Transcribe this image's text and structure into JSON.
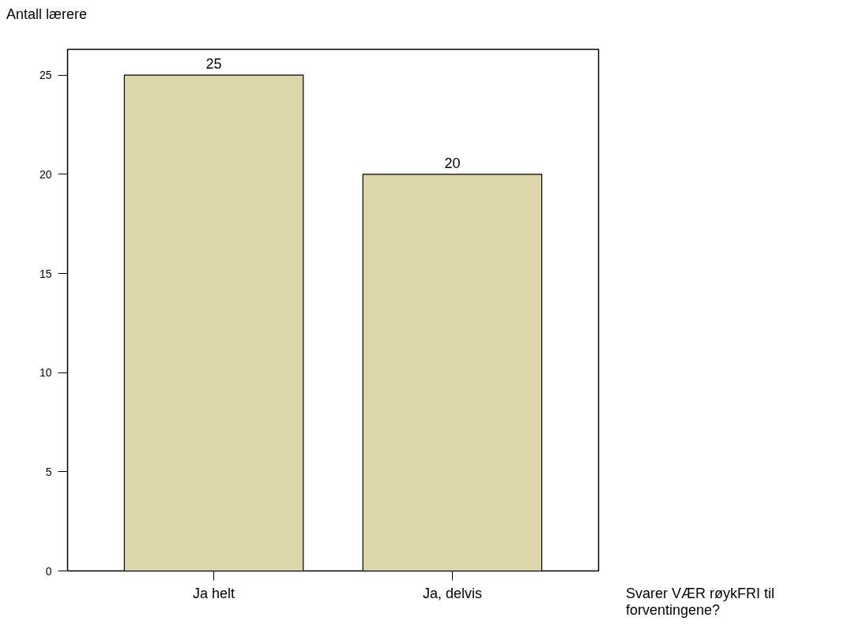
{
  "chart_data": {
    "type": "bar",
    "categories": [
      "Ja helt",
      "Ja, delvis"
    ],
    "values": [
      25,
      20
    ],
    "color": "#dbd5a7",
    "ylim": [
      0,
      26.3
    ],
    "yticks": [
      0,
      5,
      10,
      15,
      20,
      25
    ],
    "xlabel": "Svarer VÆR røykFRI til forventingene?",
    "ylabel": "Antall lærere",
    "data_labels": true,
    "grid": false
  }
}
